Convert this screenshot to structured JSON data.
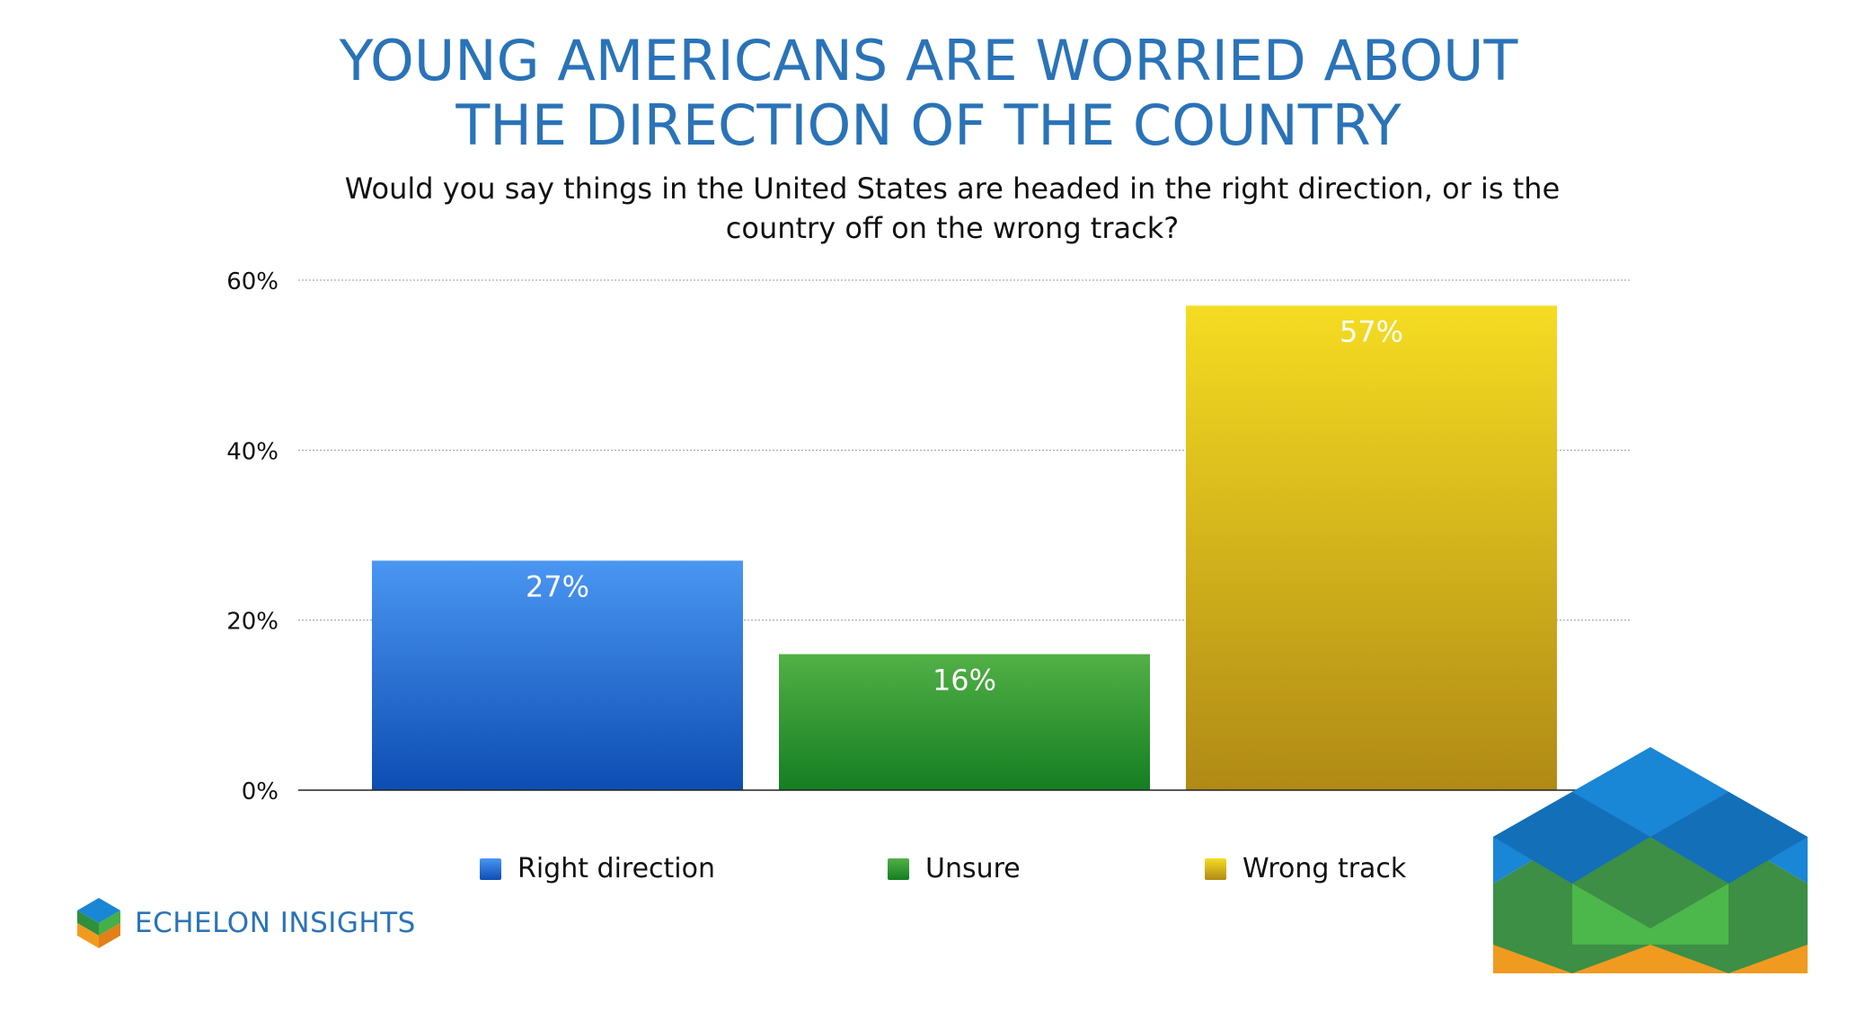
{
  "title_lines": [
    "YOUNG AMERICANS ARE WORRIED ABOUT",
    "THE DIRECTION OF THE COUNTRY"
  ],
  "subtitle": "Would you say things in the United States are headed in the right direction, or is the country off on the wrong track?",
  "brand": {
    "name": "ECHELON INSIGHTS"
  },
  "colors": {
    "title": "#2a73b8",
    "right_direction": "#2f73dd",
    "unsure": "#2f9a2f",
    "wrong_track": "#d8b41c"
  },
  "legend": [
    {
      "label": "Right direction",
      "color": "#2f73dd"
    },
    {
      "label": "Unsure",
      "color": "#2f9a2f"
    },
    {
      "label": "Wrong track",
      "color": "#d8b41c"
    }
  ],
  "chart_data": {
    "type": "bar",
    "categories": [
      "Right direction",
      "Unsure",
      "Wrong track"
    ],
    "values": [
      27,
      16,
      57
    ],
    "data_labels": [
      "27%",
      "16%",
      "57%"
    ],
    "unit": "%",
    "ylim": [
      0,
      60
    ],
    "yticks": [
      0,
      20,
      40,
      60
    ],
    "ytick_labels": [
      "0%",
      "20%",
      "40%",
      "60%"
    ],
    "grid": true,
    "legend_position": "bottom",
    "xlabel": "",
    "ylabel": ""
  }
}
